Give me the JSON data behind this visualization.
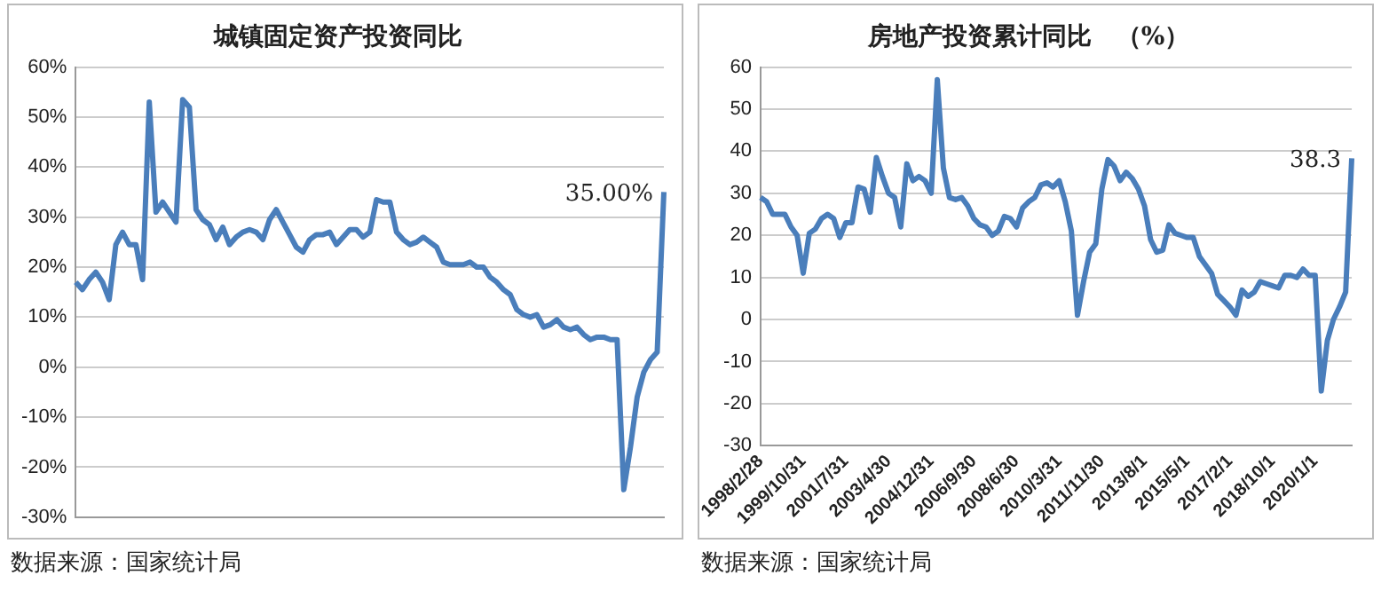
{
  "chart_data": [
    {
      "type": "line",
      "title": "城镇固定资产投资同比",
      "tick_labels": "y",
      "categories": [
        null,
        null,
        null,
        null,
        null,
        null,
        null,
        null,
        null,
        null,
        null,
        null,
        null,
        null,
        null,
        null,
        null,
        null,
        null,
        null,
        null,
        null,
        null,
        null,
        null,
        null,
        null,
        null,
        null,
        null,
        null,
        null,
        null,
        null,
        null,
        null,
        null,
        null,
        null,
        null,
        null,
        null,
        null,
        null,
        null,
        null,
        null,
        null,
        null,
        null,
        null,
        null,
        null,
        null,
        null,
        null,
        null,
        null,
        null,
        null,
        null,
        null,
        null,
        null,
        null,
        null,
        null,
        null,
        null,
        null,
        null,
        null,
        null,
        null,
        null,
        null,
        null,
        null,
        null,
        null,
        null,
        null,
        null,
        null,
        null,
        null,
        null,
        null,
        null
      ],
      "series": [
        {
          "color": "#4a7ebb",
          "values": [
            17,
            15.5,
            17.5,
            19,
            17,
            13.5,
            24.5,
            27,
            24.5,
            24.5,
            17.5,
            53,
            31,
            33,
            31,
            29,
            53.5,
            52,
            31.5,
            29.5,
            28.5,
            25.5,
            28,
            24.5,
            26,
            27,
            27.5,
            27,
            25.5,
            29.5,
            31.5,
            29,
            26.5,
            24,
            23,
            25.5,
            26.5,
            26.5,
            27,
            24.5,
            26,
            27.5,
            27.5,
            26,
            27,
            33.5,
            33,
            33,
            27,
            25.5,
            24.5,
            25,
            26,
            25,
            24,
            21,
            20.5,
            20.5,
            20.5,
            21,
            20,
            20,
            18,
            17,
            15.5,
            14.5,
            11.5,
            10.5,
            10,
            10.5,
            8,
            8.5,
            9.5,
            8,
            7.5,
            8,
            6.5,
            5.5,
            6,
            6,
            5.5,
            5.5,
            -24.5,
            -16,
            -6,
            -1,
            1.5,
            3,
            35
          ],
          "value_labels": [
            null,
            null,
            null,
            null,
            null,
            null,
            null,
            null,
            null,
            null,
            null,
            null,
            null,
            null,
            null,
            null,
            null,
            null,
            null,
            null,
            null,
            null,
            null,
            null,
            null,
            null,
            null,
            null,
            null,
            null,
            null,
            null,
            null,
            null,
            null,
            null,
            null,
            null,
            null,
            null,
            null,
            null,
            null,
            null,
            null,
            null,
            null,
            null,
            null,
            null,
            null,
            null,
            null,
            null,
            null,
            null,
            null,
            null,
            null,
            null,
            null,
            null,
            null,
            null,
            null,
            null,
            null,
            null,
            null,
            null,
            null,
            null,
            null,
            null,
            null,
            null,
            null,
            null,
            null,
            null,
            null,
            null,
            null,
            null,
            null,
            null,
            null,
            null,
            "35.00%"
          ]
        }
      ],
      "ylim": [
        -30,
        60
      ],
      "yticks": [
        {
          "value": -30,
          "label": "-30%"
        },
        {
          "value": -20,
          "label": "-20%"
        },
        {
          "value": -10,
          "label": "-10%"
        },
        {
          "value": 0,
          "label": "0%"
        },
        {
          "value": 10,
          "label": "10%"
        },
        {
          "value": 20,
          "label": "20%"
        },
        {
          "value": 30,
          "label": "30%"
        },
        {
          "value": 40,
          "label": "40%"
        },
        {
          "value": 50,
          "label": "50%"
        },
        {
          "value": 60,
          "label": "60%"
        }
      ],
      "grid": "y",
      "legend": false,
      "marker": "none",
      "line_style": "solid",
      "annotations": [
        "数据来源：国家统计局"
      ]
    },
    {
      "type": "line",
      "title": "房地产投资累计同比　（%）",
      "categories": [
        "1998/2/28",
        null,
        null,
        null,
        null,
        null,
        null,
        "1999/10/31",
        null,
        null,
        null,
        null,
        null,
        null,
        "2001/7/31",
        null,
        null,
        null,
        null,
        null,
        null,
        "2003/4/30",
        null,
        null,
        null,
        null,
        null,
        null,
        "2004/12/31",
        null,
        null,
        null,
        null,
        null,
        null,
        "2006/9/30",
        null,
        null,
        null,
        null,
        null,
        null,
        "2008/6/30",
        null,
        null,
        null,
        null,
        null,
        null,
        "2010/3/31",
        null,
        null,
        null,
        null,
        null,
        null,
        "2011/11/30",
        null,
        null,
        null,
        null,
        null,
        null,
        "2013/8/1",
        null,
        null,
        null,
        null,
        null,
        null,
        "2015/5/1",
        null,
        null,
        null,
        null,
        null,
        null,
        "2017/2/1",
        null,
        null,
        null,
        null,
        null,
        null,
        "2018/10/1",
        null,
        null,
        null,
        null,
        null,
        null,
        "2020/1/1",
        null,
        null,
        null,
        null,
        null,
        null
      ],
      "series": [
        {
          "color": "#4a7ebb",
          "values": [
            29,
            28,
            25,
            25,
            25,
            22,
            20,
            11,
            20.5,
            21.5,
            24,
            25,
            24,
            19.5,
            23,
            23,
            31.5,
            31,
            25.5,
            38.5,
            34,
            30,
            29,
            22,
            37,
            33,
            34,
            33,
            30,
            57,
            36,
            29,
            28.5,
            29,
            27,
            24,
            22.5,
            22,
            20,
            21,
            24.5,
            24,
            22,
            26.5,
            28,
            29,
            32,
            32.5,
            31.5,
            33,
            28,
            21,
            1,
            9,
            16,
            18,
            31,
            38,
            36.5,
            33,
            35,
            33.5,
            31,
            27,
            19,
            16,
            16.5,
            22.5,
            20.5,
            20,
            19.5,
            19.5,
            15,
            13,
            11,
            6,
            4.5,
            3,
            1,
            7,
            5.5,
            6.5,
            9,
            8.5,
            8,
            7.5,
            10.5,
            10.5,
            10,
            12,
            10.5,
            10.5,
            -17,
            -5,
            0,
            3,
            6.5,
            38.3
          ],
          "value_labels": [
            null,
            null,
            null,
            null,
            null,
            null,
            null,
            null,
            null,
            null,
            null,
            null,
            null,
            null,
            null,
            null,
            null,
            null,
            null,
            null,
            null,
            null,
            null,
            null,
            null,
            null,
            null,
            null,
            null,
            null,
            null,
            null,
            null,
            null,
            null,
            null,
            null,
            null,
            null,
            null,
            null,
            null,
            null,
            null,
            null,
            null,
            null,
            null,
            null,
            null,
            null,
            null,
            null,
            null,
            null,
            null,
            null,
            null,
            null,
            null,
            null,
            null,
            null,
            null,
            null,
            null,
            null,
            null,
            null,
            null,
            null,
            null,
            null,
            null,
            null,
            null,
            null,
            null,
            null,
            null,
            null,
            null,
            null,
            null,
            null,
            null,
            null,
            null,
            null,
            null,
            null,
            null,
            null,
            null,
            null,
            null,
            null,
            "38.3"
          ]
        }
      ],
      "ylim": [
        -30,
        60
      ],
      "yticks": [
        -30,
        -20,
        -10,
        0,
        10,
        20,
        30,
        40,
        50,
        60
      ],
      "grid": "y",
      "legend": false,
      "marker": "none",
      "line_style": "solid",
      "annotations": [
        "数据来源：国家统计局"
      ]
    }
  ]
}
